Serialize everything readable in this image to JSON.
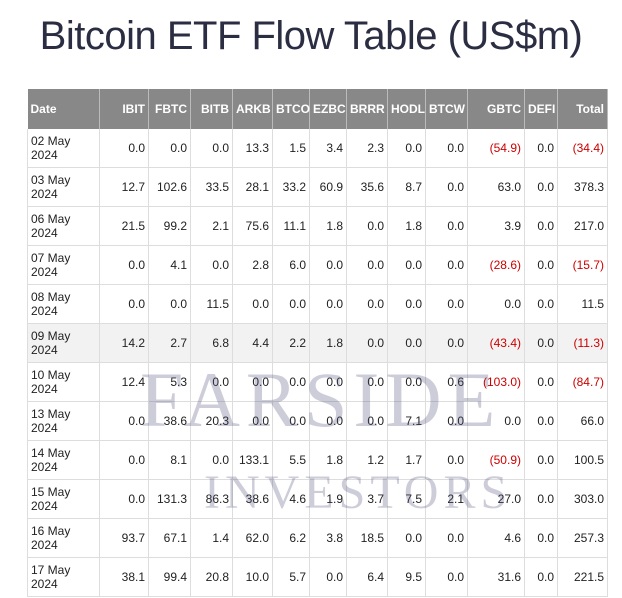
{
  "title": "Bitcoin ETF Flow Table (US$m)",
  "watermark": {
    "main": "FARSIDE",
    "sub": "INVESTORS"
  },
  "colors": {
    "header_bg": "#888888",
    "negative": "#cc0000",
    "highlight_row": "#f2f2f2"
  },
  "table": {
    "headers": [
      "Date",
      "IBIT",
      "FBTC",
      "BITB",
      "ARKB",
      "BTCO",
      "EZBC",
      "BRRR",
      "HODL",
      "BTCW",
      "GBTC",
      "DEFI",
      "Total"
    ],
    "rows": [
      {
        "date": "02 May 2024",
        "cells": [
          "0.0",
          "0.0",
          "0.0",
          "13.3",
          "1.5",
          "3.4",
          "2.3",
          "0.0",
          "0.0",
          "(54.9)",
          "0.0",
          "(34.4)"
        ]
      },
      {
        "date": "03 May 2024",
        "cells": [
          "12.7",
          "102.6",
          "33.5",
          "28.1",
          "33.2",
          "60.9",
          "35.6",
          "8.7",
          "0.0",
          "63.0",
          "0.0",
          "378.3"
        ]
      },
      {
        "date": "06 May 2024",
        "cells": [
          "21.5",
          "99.2",
          "2.1",
          "75.6",
          "11.1",
          "1.8",
          "0.0",
          "1.8",
          "0.0",
          "3.9",
          "0.0",
          "217.0"
        ]
      },
      {
        "date": "07 May 2024",
        "cells": [
          "0.0",
          "4.1",
          "0.0",
          "2.8",
          "6.0",
          "0.0",
          "0.0",
          "0.0",
          "0.0",
          "(28.6)",
          "0.0",
          "(15.7)"
        ]
      },
      {
        "date": "08 May 2024",
        "cells": [
          "0.0",
          "0.0",
          "11.5",
          "0.0",
          "0.0",
          "0.0",
          "0.0",
          "0.0",
          "0.0",
          "0.0",
          "0.0",
          "11.5"
        ]
      },
      {
        "date": "09 May 2024",
        "cells": [
          "14.2",
          "2.7",
          "6.8",
          "4.4",
          "2.2",
          "1.8",
          "0.0",
          "0.0",
          "0.0",
          "(43.4)",
          "0.0",
          "(11.3)"
        ]
      },
      {
        "date": "10 May 2024",
        "cells": [
          "12.4",
          "5.3",
          "0.0",
          "0.0",
          "0.0",
          "0.0",
          "0.0",
          "0.0",
          "0.6",
          "(103.0)",
          "0.0",
          "(84.7)"
        ]
      },
      {
        "date": "13 May 2024",
        "cells": [
          "0.0",
          "38.6",
          "20.3",
          "0.0",
          "0.0",
          "0.0",
          "0.0",
          "7.1",
          "0.0",
          "0.0",
          "0.0",
          "66.0"
        ]
      },
      {
        "date": "14 May 2024",
        "cells": [
          "0.0",
          "8.1",
          "0.0",
          "133.1",
          "5.5",
          "1.8",
          "1.2",
          "1.7",
          "0.0",
          "(50.9)",
          "0.0",
          "100.5"
        ]
      },
      {
        "date": "15 May 2024",
        "cells": [
          "0.0",
          "131.3",
          "86.3",
          "38.6",
          "4.6",
          "1.9",
          "3.7",
          "7.5",
          "2.1",
          "27.0",
          "0.0",
          "303.0"
        ]
      },
      {
        "date": "16 May 2024",
        "cells": [
          "93.7",
          "67.1",
          "1.4",
          "62.0",
          "6.2",
          "3.8",
          "18.5",
          "0.0",
          "0.0",
          "4.6",
          "0.0",
          "257.3"
        ]
      },
      {
        "date": "17 May 2024",
        "cells": [
          "38.1",
          "99.4",
          "20.8",
          "10.0",
          "5.7",
          "0.0",
          "6.4",
          "9.5",
          "0.0",
          "31.6",
          "0.0",
          "221.5"
        ]
      }
    ]
  }
}
